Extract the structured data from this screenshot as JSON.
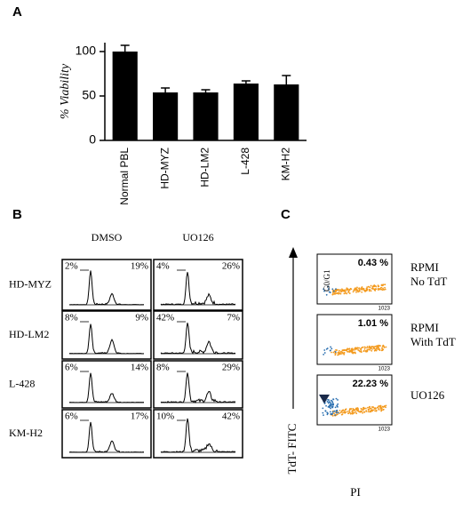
{
  "chart_data": {
    "type": "bar",
    "panel_label": "A",
    "ylabel": "% Viability",
    "categories": [
      "Normal PBL",
      "HD-MYZ",
      "HD-LM2",
      "L-428",
      "KM-H2"
    ],
    "values": [
      100,
      54,
      54,
      64,
      63
    ],
    "errors": [
      7,
      5,
      3,
      3,
      10
    ],
    "color": "#000000",
    "ylim": [
      0,
      110
    ],
    "yticks": [
      0,
      50,
      100
    ]
  },
  "panel_b": {
    "label": "B",
    "columns": [
      "DMSO",
      "UO126"
    ],
    "rows": [
      {
        "name": "HD-MYZ",
        "cells": [
          [
            "2%",
            "19%"
          ],
          [
            "4%",
            "26%"
          ]
        ]
      },
      {
        "name": "HD-LM2",
        "cells": [
          [
            "8%",
            "9%"
          ],
          [
            "42%",
            "7%"
          ]
        ]
      },
      {
        "name": "L-428",
        "cells": [
          [
            "6%",
            "14%"
          ],
          [
            "8%",
            "29%"
          ]
        ]
      },
      {
        "name": "KM-H2",
        "cells": [
          [
            "6%",
            "17%"
          ],
          [
            "10%",
            "42%"
          ]
        ]
      }
    ]
  },
  "panel_c": {
    "label": "C",
    "ylabel": "TdT- FITC",
    "xlabel": "PI",
    "gate": "G0/G1",
    "axis_max": "1023",
    "plots": [
      {
        "percent": "0.43 %",
        "condition": [
          "RPMI",
          "No TdT"
        ]
      },
      {
        "percent": "1.01 %",
        "condition": [
          "RPMI",
          "With TdT"
        ]
      },
      {
        "percent": "22.23 %",
        "condition": [
          "UO126"
        ]
      }
    ]
  }
}
